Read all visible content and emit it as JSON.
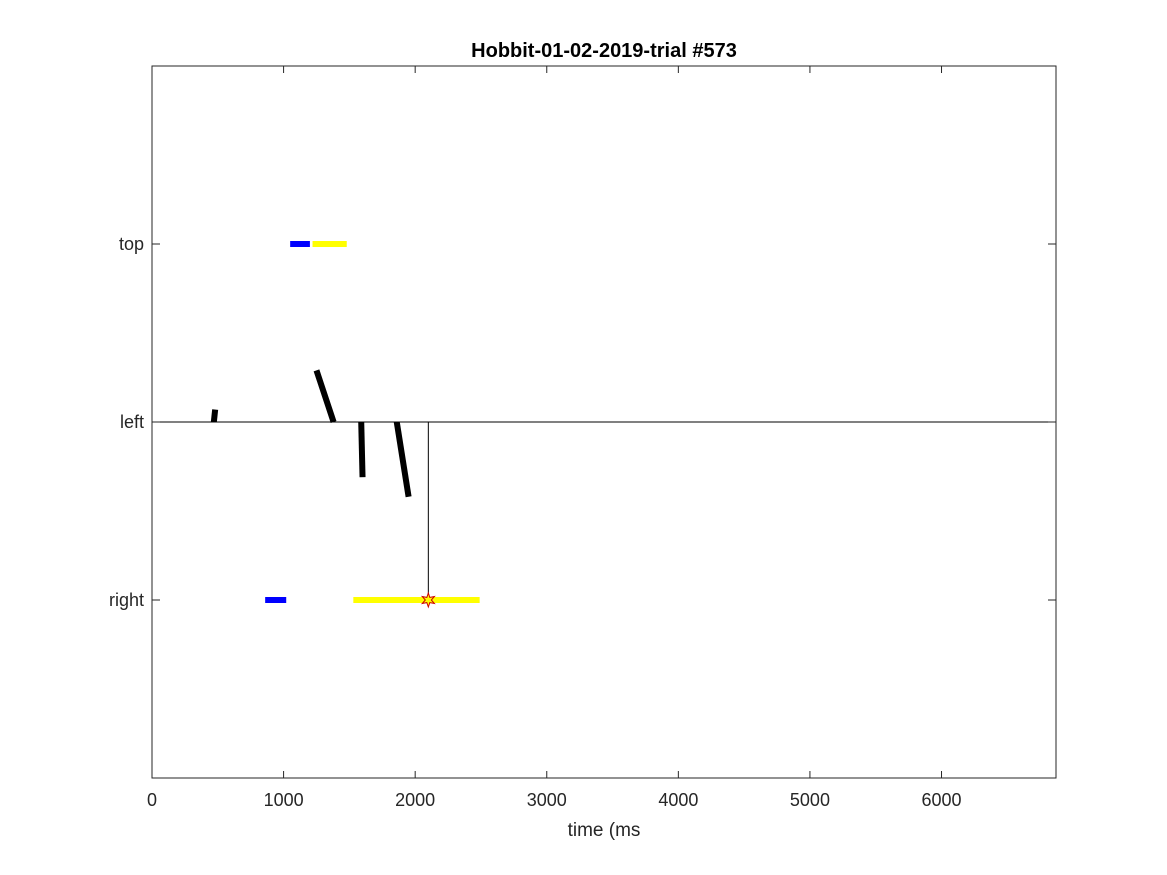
{
  "chart_data": {
    "type": "line",
    "title": "Hobbit-01-02-2019-trial #573",
    "xlabel": "time (ms",
    "ylabel": "",
    "xlim": [
      0,
      6870
    ],
    "ylim": [
      0,
      4
    ],
    "xticks": [
      0,
      1000,
      2000,
      3000,
      4000,
      5000,
      6000
    ],
    "yticks": [
      {
        "value": 1,
        "label": "right"
      },
      {
        "value": 2,
        "label": "left"
      },
      {
        "value": 3,
        "label": "top"
      }
    ],
    "grid": false,
    "colors": {
      "cue": "#0000ff",
      "target": "#ffff00",
      "gaze": "#000000",
      "marker_fill": "#ffff00",
      "marker_edge": "#cc0000",
      "axes": "#262626"
    },
    "cue_segments": [
      {
        "row": 3,
        "x": [
          1050,
          1200
        ]
      },
      {
        "row": 1,
        "x": [
          860,
          1020
        ]
      }
    ],
    "target_segments": [
      {
        "row": 3,
        "x": [
          1220,
          1480
        ]
      },
      {
        "row": 1,
        "x": [
          1530,
          2490
        ]
      }
    ],
    "gaze_segments": [
      {
        "x": [
          470,
          480
        ],
        "y": [
          2.0,
          2.07
        ]
      },
      {
        "x": [
          1250,
          1380
        ],
        "y": [
          2.29,
          2.0
        ]
      },
      {
        "x": [
          1590,
          1600
        ],
        "y": [
          2.0,
          1.69
        ]
      },
      {
        "x": [
          1860,
          1950
        ],
        "y": [
          2.0,
          1.58
        ]
      }
    ],
    "reference_lines": [
      {
        "type": "horizontal",
        "y": 2,
        "x": [
          0,
          6870
        ]
      },
      {
        "type": "vertical",
        "x": 2100,
        "y": [
          1,
          2
        ]
      }
    ],
    "markers": [
      {
        "type": "star",
        "x": 2100,
        "y": 1
      }
    ]
  }
}
